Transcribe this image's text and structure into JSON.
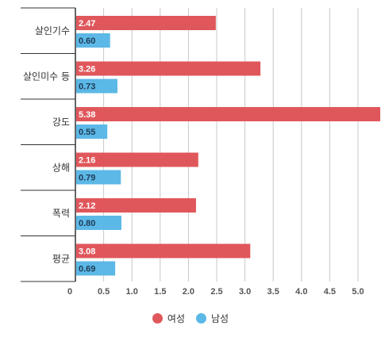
{
  "chart_data": {
    "type": "bar",
    "orientation": "horizontal",
    "categories": [
      "살인기수",
      "살인미수 등",
      "강도",
      "상해",
      "폭력",
      "평균"
    ],
    "series": [
      {
        "name": "여성",
        "color": "#e0575b",
        "values": [
          2.47,
          3.26,
          5.38,
          2.16,
          2.12,
          3.08
        ],
        "labels": [
          "2.47",
          "3.26",
          "5.38",
          "2.16",
          "2.12",
          "3.08"
        ]
      },
      {
        "name": "남성",
        "color": "#5cb8e6",
        "values": [
          0.6,
          0.73,
          0.55,
          0.79,
          0.8,
          0.69
        ],
        "labels": [
          "0.60",
          "0.73",
          "0.55",
          "0.79",
          "0.80",
          "0.69"
        ]
      }
    ],
    "xlim": [
      0,
      5.5
    ],
    "xticks": [
      0,
      0.5,
      1.0,
      1.5,
      2.0,
      2.5,
      3.0,
      3.5,
      4.0,
      4.5,
      5.0
    ],
    "xtick_labels": [
      "0",
      "0.5",
      "1.0",
      "1.5",
      "2.0",
      "2.5",
      "3.0",
      "3.5",
      "4.0",
      "4.5",
      "5.0"
    ],
    "grid": true,
    "legend_position": "bottom"
  }
}
